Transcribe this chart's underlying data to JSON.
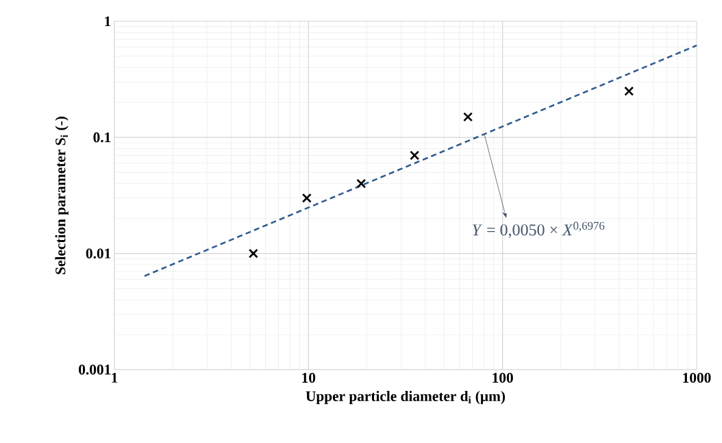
{
  "chart_data": {
    "type": "scatter",
    "xlabel": "Upper particle diameter d$_{i}$ (µm)",
    "ylabel": "Selection parameter S$_{i}$ (-)",
    "series": [
      {
        "color": "#000000",
        "marker": "cross",
        "x": [
          5.2,
          9.8,
          18.7,
          35.2,
          66.3,
          448
        ],
        "values": [
          0.01,
          0.03,
          0.04,
          0.07,
          0.15,
          0.25
        ]
      },
      {
        "type": "line",
        "color": "#2e5a8e",
        "marker": "none",
        "line_style": "dashed",
        "x": [
          1.43,
          1000
        ],
        "values": [
          0.0064,
          0.619
        ]
      }
    ],
    "annotations": [
      {
        "text": "*Y* = 0,0050 × *X*$^{0,6976}$",
        "x": 80.5,
        "y": 0.107
      }
    ],
    "log": "xy",
    "grid": true,
    "xlim": [
      1,
      1000
    ],
    "ylim": [
      0.001,
      1
    ],
    "xticks": [
      1,
      10,
      100,
      1000
    ],
    "yticks": [
      0.001,
      0.01,
      0.1,
      1
    ]
  }
}
